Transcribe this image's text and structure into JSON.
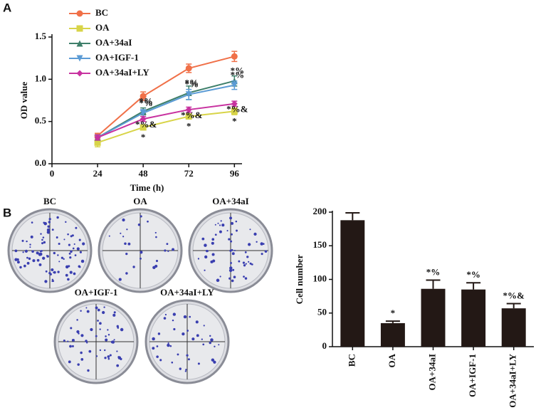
{
  "panels": [
    "A",
    "B"
  ],
  "plates": [
    "BC",
    "OA",
    "OA+34aI",
    "OA+IGF-1",
    "OA+34aI+LY"
  ],
  "chart_data": [
    {
      "type": "line",
      "xlabel": "Time (h)",
      "ylabel": "OD value",
      "x": [
        24,
        48,
        72,
        96
      ],
      "xlim": [
        0,
        100
      ],
      "xticks": [
        0,
        24,
        48,
        72,
        96
      ],
      "ylim": [
        0,
        1.5
      ],
      "yticks": [
        {
          "value": 0,
          "label": "0.0"
        },
        0.5,
        {
          "value": 1,
          "label": "1.0"
        },
        1.5
      ],
      "legend": "upper left",
      "series": [
        {
          "name": "BC",
          "color": "#f07048",
          "marker": "circle",
          "values": [
            0.33,
            0.8,
            1.13,
            1.27
          ],
          "errors": [
            0.03,
            0.05,
            0.05,
            0.06
          ]
        },
        {
          "name": "OA",
          "color": "#d8d448",
          "marker": "square",
          "values": [
            0.25,
            0.43,
            0.56,
            0.62
          ],
          "errors": [
            0.05,
            0.03,
            0.03,
            0.04
          ],
          "labels": [
            null,
            "*",
            "*",
            "*"
          ]
        },
        {
          "name": "OA+34aI",
          "color": "#3e7f6a",
          "marker": "triangle",
          "values": [
            0.31,
            0.62,
            0.84,
            0.98
          ],
          "errors": [
            0.03,
            0.04,
            0.08,
            0.06
          ],
          "labels": [
            null,
            "*%",
            "*%",
            "*%"
          ]
        },
        {
          "name": "OA+IGF-1",
          "color": "#5b9bd5",
          "marker": "triangle-down",
          "values": [
            0.31,
            0.6,
            0.82,
            0.93
          ],
          "errors": [
            0.03,
            0.04,
            0.06,
            0.05
          ],
          "labels": [
            null,
            "*%",
            "*%",
            "*%"
          ]
        },
        {
          "name": "OA+34aI+LY",
          "color": "#c832a0",
          "marker": "diamond",
          "values": [
            0.31,
            0.53,
            0.64,
            0.71
          ],
          "errors": [
            0.03,
            0.03,
            0.03,
            0.03
          ],
          "labels": [
            null,
            "*%&",
            "*%&",
            "*%&"
          ]
        }
      ]
    },
    {
      "type": "bar",
      "ylabel": "Cell number",
      "categories": [
        "BC",
        "OA",
        "OA+34aI",
        "OA+IGF-1",
        "OA+34aI+LY"
      ],
      "values": [
        188,
        35,
        86,
        85,
        57
      ],
      "errors": [
        11,
        3,
        13,
        10,
        7
      ],
      "labels": [
        null,
        "*",
        "*%",
        "*%",
        "*%&"
      ],
      "color": "#231815",
      "ylim": [
        0,
        200
      ],
      "yticks": [
        0,
        50,
        100,
        150,
        200
      ]
    }
  ]
}
